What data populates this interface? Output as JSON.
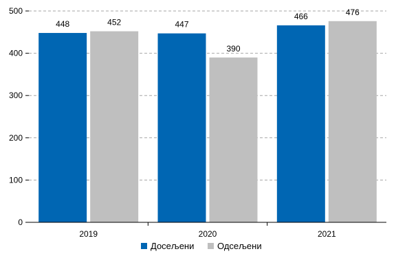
{
  "chart_data": {
    "type": "bar",
    "categories": [
      "2019",
      "2020",
      "2021"
    ],
    "series": [
      {
        "name": "Досељени",
        "values": [
          448,
          447,
          466
        ],
        "color": "#0066b3"
      },
      {
        "name": "Одсељени",
        "values": [
          452,
          390,
          476
        ],
        "color": "#bfbfbf"
      }
    ],
    "ylim": [
      0,
      500
    ],
    "yticks": [
      0,
      100,
      200,
      300,
      400,
      500
    ],
    "grid": true,
    "legend_position": "bottom",
    "data_labels": true
  }
}
